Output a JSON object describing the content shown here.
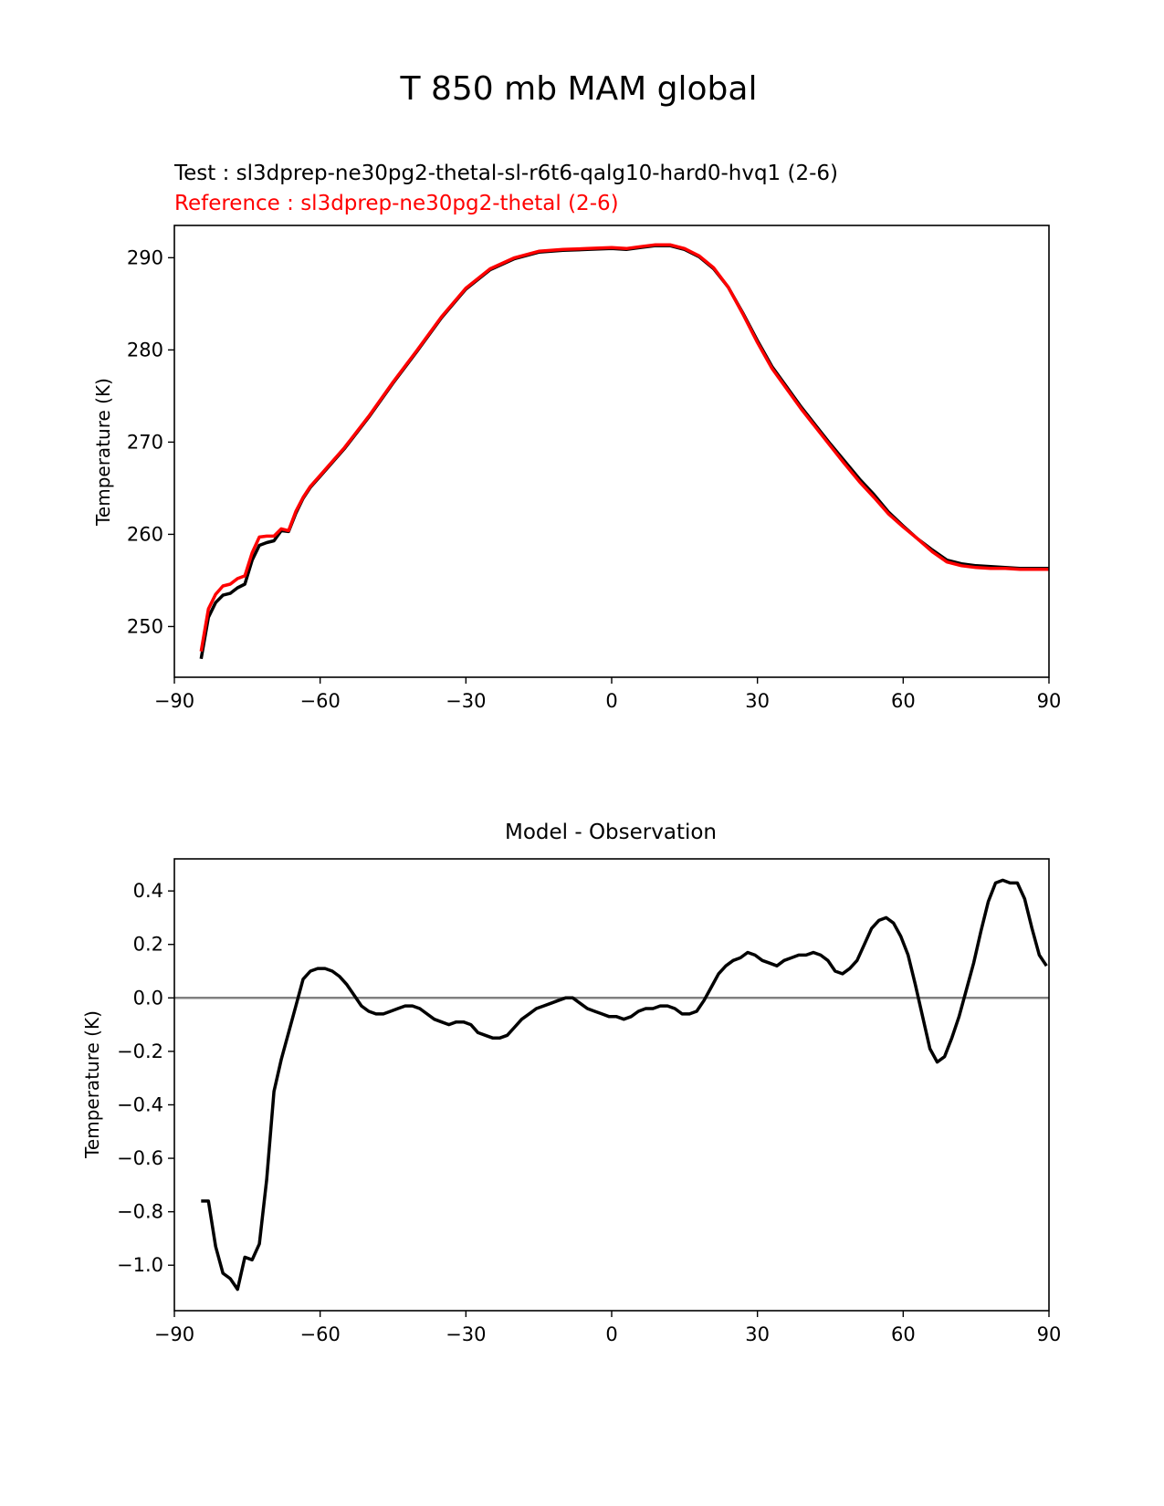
{
  "figure_title": "T 850 mb MAM global",
  "colors": {
    "test": "#000000",
    "reference": "#ff0000",
    "zero_line": "#808080"
  },
  "chart_data": [
    {
      "type": "line",
      "test_label": "Test : sl3dprep-ne30pg2-thetal-sl-r6t6-qalg10-hard0-hvq1 (2-6)",
      "reference_label": "Reference : sl3dprep-ne30pg2-thetal (2-6)",
      "ylabel": "Temperature (K)",
      "xlim": [
        -90,
        90
      ],
      "ylim": [
        244.5,
        293.5
      ],
      "xticks": [
        -90,
        -60,
        -30,
        0,
        30,
        60,
        90
      ],
      "xtick_labels": [
        "−90",
        "−60",
        "−30",
        "0",
        "30",
        "60",
        "90"
      ],
      "yticks": [
        250,
        260,
        270,
        280,
        290
      ],
      "ytick_labels": [
        "250",
        "260",
        "270",
        "280",
        "290"
      ],
      "series": [
        {
          "name": "Test",
          "color": "#000000",
          "x": [
            -84.5,
            -83,
            -81.5,
            -80,
            -78.5,
            -77,
            -75.5,
            -74,
            -72.5,
            -71,
            -69.5,
            -68,
            -66.5,
            -65,
            -63.5,
            -62,
            -60,
            -55,
            -50,
            -45,
            -40,
            -35,
            -30,
            -25,
            -20,
            -15,
            -10,
            -5,
            0,
            3,
            6,
            9,
            12,
            15,
            18,
            21,
            24,
            27,
            30,
            33,
            36,
            39,
            42,
            45,
            48,
            51,
            54,
            57,
            60,
            63,
            66,
            69,
            72,
            75,
            78,
            81,
            84,
            87,
            90
          ],
          "y": [
            246.5,
            251.0,
            252.6,
            253.4,
            253.6,
            254.2,
            254.6,
            257.2,
            258.8,
            259.1,
            259.3,
            260.4,
            260.3,
            262.3,
            263.9,
            265.1,
            266.3,
            269.3,
            272.7,
            276.4,
            279.9,
            283.5,
            286.6,
            288.7,
            289.9,
            290.6,
            290.8,
            290.9,
            291.0,
            290.9,
            291.1,
            291.3,
            291.3,
            290.9,
            290.1,
            288.8,
            286.8,
            284.0,
            281.0,
            278.2,
            276.0,
            273.8,
            271.8,
            269.8,
            267.9,
            266.0,
            264.3,
            262.4,
            260.9,
            259.5,
            258.3,
            257.2,
            256.8,
            256.6,
            256.5,
            256.4,
            256.3,
            256.3,
            256.3
          ]
        },
        {
          "name": "Reference",
          "color": "#ff0000",
          "x": [
            -84.5,
            -83,
            -81.5,
            -80,
            -78.5,
            -77,
            -75.5,
            -74,
            -72.5,
            -71,
            -69.5,
            -68,
            -66.5,
            -65,
            -63.5,
            -62,
            -60,
            -55,
            -50,
            -45,
            -40,
            -35,
            -30,
            -25,
            -20,
            -15,
            -10,
            -5,
            0,
            3,
            6,
            9,
            12,
            15,
            18,
            21,
            24,
            27,
            30,
            33,
            36,
            39,
            42,
            45,
            48,
            51,
            54,
            57,
            60,
            63,
            66,
            69,
            72,
            75,
            78,
            81,
            84,
            87,
            90
          ],
          "y": [
            247.3,
            251.9,
            253.5,
            254.4,
            254.6,
            255.2,
            255.5,
            258.0,
            259.7,
            259.8,
            259.8,
            260.6,
            260.4,
            262.5,
            264.0,
            265.2,
            266.4,
            269.4,
            272.8,
            276.5,
            280.0,
            283.6,
            286.7,
            288.8,
            290.0,
            290.7,
            290.9,
            291.0,
            291.1,
            291.0,
            291.2,
            291.4,
            291.4,
            291.0,
            290.2,
            288.9,
            286.8,
            283.9,
            280.8,
            278.0,
            275.8,
            273.6,
            271.6,
            269.6,
            267.6,
            265.7,
            264.0,
            262.2,
            260.8,
            259.5,
            258.1,
            257.0,
            256.6,
            256.4,
            256.3,
            256.3,
            256.2,
            256.2,
            256.2
          ]
        }
      ]
    },
    {
      "type": "line",
      "title": "Model - Observation",
      "ylabel": "Temperature (K)",
      "xlim": [
        -90,
        90
      ],
      "ylim": [
        -1.17,
        0.52
      ],
      "xticks": [
        -90,
        -60,
        -30,
        0,
        30,
        60,
        90
      ],
      "xtick_labels": [
        "−90",
        "−60",
        "−30",
        "0",
        "30",
        "60",
        "90"
      ],
      "yticks": [
        0.4,
        0.2,
        0.0,
        -0.2,
        -0.4,
        -0.6,
        -0.8,
        -1.0
      ],
      "ytick_labels": [
        "0.4",
        "0.2",
        "0.0",
        "−0.2",
        "−0.4",
        "−0.6",
        "−0.8",
        "−1.0"
      ],
      "zero_line": 0,
      "series": [
        {
          "color": "#000000",
          "x": [
            -84.5,
            -83,
            -81.5,
            -80,
            -78.5,
            -77,
            -75.5,
            -74,
            -72.5,
            -71,
            -69.5,
            -68,
            -66.5,
            -65,
            -63.5,
            -62,
            -60.5,
            -59,
            -57.5,
            -56,
            -54.5,
            -53,
            -51.5,
            -50,
            -48.5,
            -47,
            -45.5,
            -44,
            -42.5,
            -41,
            -39.5,
            -38,
            -36.5,
            -35,
            -33.5,
            -32,
            -30.5,
            -29,
            -27.5,
            -26,
            -24.5,
            -23,
            -21.5,
            -20,
            -18.5,
            -17,
            -15.5,
            -14,
            -12.5,
            -11,
            -9.5,
            -8,
            -6.5,
            -5,
            -3.5,
            -2,
            -0.5,
            1,
            2.5,
            4,
            5.5,
            7,
            8.5,
            10,
            11.5,
            13,
            14.5,
            16,
            17.5,
            19,
            20.5,
            22,
            23.5,
            25,
            26.5,
            28,
            29.5,
            31,
            32.5,
            34,
            35.5,
            37,
            38.5,
            40,
            41.5,
            43,
            44.5,
            46,
            47.5,
            49,
            50.5,
            52,
            53.5,
            55,
            56.5,
            58,
            59.5,
            61,
            62.5,
            64,
            65.5,
            67,
            68.5,
            70,
            71.5,
            73,
            74.5,
            76,
            77.5,
            79,
            80.5,
            82,
            83.5,
            85,
            86.5,
            88,
            89.5
          ],
          "y": [
            -0.76,
            -0.76,
            -0.93,
            -1.03,
            -1.05,
            -1.09,
            -0.97,
            -0.98,
            -0.92,
            -0.68,
            -0.35,
            -0.23,
            -0.13,
            -0.03,
            0.07,
            0.1,
            0.11,
            0.11,
            0.1,
            0.08,
            0.05,
            0.01,
            -0.03,
            -0.05,
            -0.06,
            -0.06,
            -0.05,
            -0.04,
            -0.03,
            -0.03,
            -0.04,
            -0.06,
            -0.08,
            -0.09,
            -0.1,
            -0.09,
            -0.09,
            -0.1,
            -0.13,
            -0.14,
            -0.15,
            -0.15,
            -0.14,
            -0.11,
            -0.08,
            -0.06,
            -0.04,
            -0.03,
            -0.02,
            -0.01,
            0.0,
            0.0,
            -0.02,
            -0.04,
            -0.05,
            -0.06,
            -0.07,
            -0.07,
            -0.08,
            -0.07,
            -0.05,
            -0.04,
            -0.04,
            -0.03,
            -0.03,
            -0.04,
            -0.06,
            -0.06,
            -0.05,
            -0.01,
            0.04,
            0.09,
            0.12,
            0.14,
            0.15,
            0.17,
            0.16,
            0.14,
            0.13,
            0.12,
            0.14,
            0.15,
            0.16,
            0.16,
            0.17,
            0.16,
            0.14,
            0.1,
            0.09,
            0.11,
            0.14,
            0.2,
            0.26,
            0.29,
            0.3,
            0.28,
            0.23,
            0.16,
            0.05,
            -0.07,
            -0.19,
            -0.24,
            -0.22,
            -0.15,
            -0.07,
            0.03,
            0.13,
            0.25,
            0.36,
            0.43,
            0.44,
            0.43,
            0.43,
            0.37,
            0.26,
            0.16,
            0.12
          ]
        }
      ]
    }
  ]
}
